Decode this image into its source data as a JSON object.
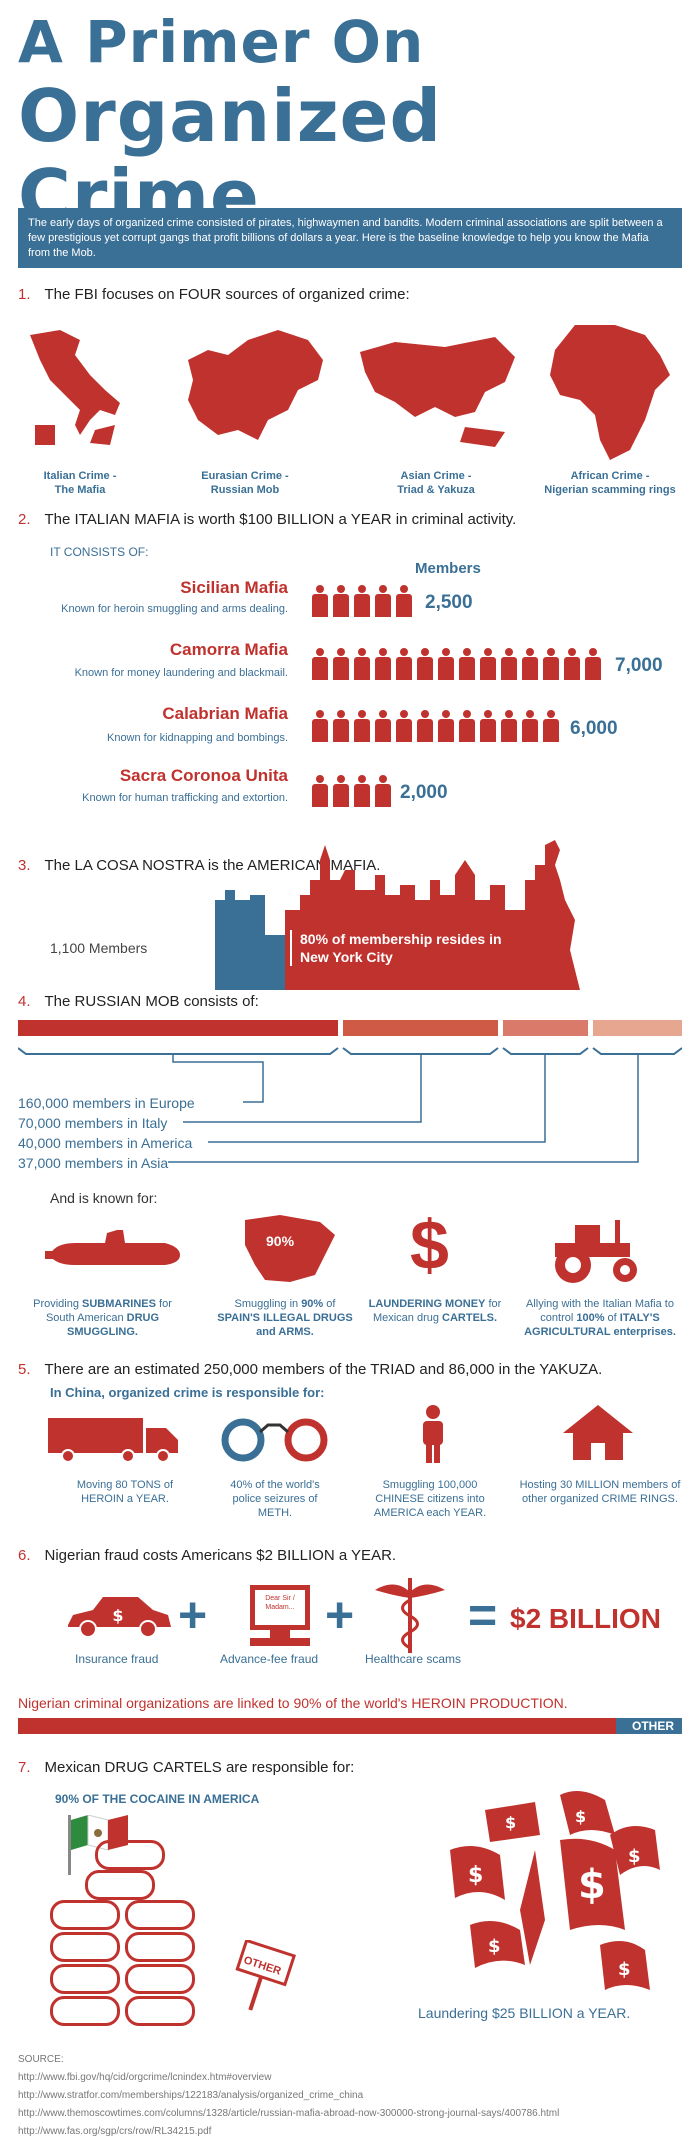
{
  "header": {
    "title_line1": "A Primer On",
    "title_line2": "Organized Crime",
    "intro": "The early days of organized crime consisted of pirates, highwaymen and bandits. Modern criminal associations are split between a few prestigious yet corrupt gangs that profit billions of dollars a year. Here is the baseline knowledge to help you know the Mafia from the Mob."
  },
  "s1": {
    "num": "1.",
    "text": "The FBI focuses on FOUR sources of organized crime:",
    "maps": [
      {
        "line1": "Italian Crime -",
        "line2": "The Mafia",
        "icon": "italy-map-icon"
      },
      {
        "line1": "Eurasian Crime -",
        "line2": "Russian Mob",
        "icon": "russia-map-icon"
      },
      {
        "line1": "Asian Crime -",
        "line2": "Triad & Yakuza",
        "icon": "asia-map-icon"
      },
      {
        "line1": "African Crime -",
        "line2": "Nigerian scamming rings",
        "icon": "africa-map-icon"
      }
    ]
  },
  "s2": {
    "num": "2.",
    "text": "The ITALIAN MAFIA is worth $100 BILLION a YEAR in criminal activity.",
    "consists": "IT CONSISTS OF:",
    "members_header": "Members",
    "groups": [
      {
        "name": "Sicilian Mafia",
        "desc": "Known for heroin smuggling and arms dealing.",
        "count": "2,500",
        "icons": 5
      },
      {
        "name": "Camorra Mafia",
        "desc": "Known for money laundering and blackmail.",
        "count": "7,000",
        "icons": 14
      },
      {
        "name": "Calabrian Mafia",
        "desc": "Known for kidnapping and bombings.",
        "count": "6,000",
        "icons": 12
      },
      {
        "name": "Sacra Coronoa Unita",
        "desc": "Known for human trafficking and extortion.",
        "count": "2,000",
        "icons": 4
      }
    ]
  },
  "s3": {
    "num": "3.",
    "text": "The LA COSA NOSTRA is the AMERICAN MAFIA.",
    "members": "1,100 Members",
    "nyc": "80% of membership resides in New York City"
  },
  "s4": {
    "num": "4.",
    "text": "The RUSSIAN MOB consists of:",
    "items": [
      "160,000 members in Europe",
      "70,000 members in Italy",
      "40,000 members in America",
      "37,000 members in Asia"
    ],
    "known": "And is known for:",
    "activities": [
      {
        "pre": "Providing ",
        "b1": "SUBMARINES",
        "mid": " for South American ",
        "b2": "DRUG SMUGGLING.",
        "icon": "submarine-icon"
      },
      {
        "pre": "Smuggling in ",
        "b1": "90%",
        "mid": " of ",
        "b2": "SPAIN'S ILLEGAL DRUGS and ARMS.",
        "icon": "spain-map-icon",
        "badge": "90%"
      },
      {
        "pre": "",
        "b1": "LAUNDERING MONEY",
        "mid": " for Mexican drug ",
        "b2": "CARTELS.",
        "icon": "dollar-icon"
      },
      {
        "pre": "Allying with the Italian Mafia to control ",
        "b1": "100%",
        "mid": " of ",
        "b2": "ITALY'S AGRICULTURAL enterprises.",
        "icon": "tractor-icon"
      }
    ]
  },
  "s5": {
    "num": "5.",
    "text": "There are an estimated 250,000 members of the TRIAD and 86,000 in the YAKUZA.",
    "sub": "In China, organized crime is responsible for:",
    "items": [
      {
        "text": "Moving 80 TONS of HEROIN a YEAR.",
        "icon": "truck-icon"
      },
      {
        "text": "40% of the world's police seizures of METH.",
        "icon": "handcuffs-icon"
      },
      {
        "text": "Smuggling 100,000 CHINESE citizens into AMERICA each YEAR.",
        "icon": "person-icon"
      },
      {
        "text": "Hosting 30 MILLION members of other organized CRIME RINGS.",
        "icon": "house-icon"
      }
    ]
  },
  "s6": {
    "num": "6.",
    "text": "Nigerian fraud costs Americans $2 BILLION a YEAR.",
    "items": [
      "Insurance fraud",
      "Advance-fee fraud",
      "Healthcare scams"
    ],
    "letter": "Dear Sir / Madam...",
    "total": "$2 BILLION",
    "heroin": "Nigerian criminal organizations are linked to 90% of the world's HEROIN PRODUCTION.",
    "other": "OTHER",
    "heroin_pct": 0.9
  },
  "s7": {
    "num": "7.",
    "text": "Mexican DRUG CARTELS are responsible for:",
    "cocaine": "90% OF THE COCAINE IN AMERICA",
    "other_sign": "OTHER",
    "laundering": "Laundering $25 BILLION a YEAR."
  },
  "source": {
    "label": "SOURCE:",
    "links": [
      "http://www.fbi.gov/hq/cid/orgcrime/lcnindex.htm#overview",
      "http://www.stratfor.com/memberships/122183/analysis/organized_crime_china",
      "http://www.themoscowtimes.com/columns/1328/article/russian-mafia-abroad-now-300000-strong-journal-says/400786.html",
      "http://www.fas.org/sgp/crs/row/RL34215.pdf"
    ]
  },
  "colors": {
    "red": "#c0322e",
    "blue": "#3a6f96"
  }
}
